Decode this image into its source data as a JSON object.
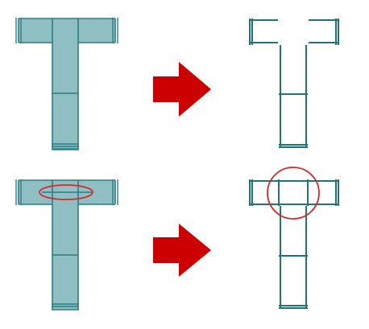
{
  "colors": {
    "background": "#ffffff",
    "pipe_fill": "#8fbfc3",
    "pipe_line": "#2a7f86",
    "outline": "#1f7478",
    "arrow": "#cc0000",
    "highlight": "#d62a2a"
  },
  "rows": [
    {
      "solid_tee": "filled-tee-pipe",
      "arrow": "right-arrow",
      "outline_tee": "tee-outline-open-junction",
      "highlight": false
    },
    {
      "solid_tee": "filled-tee-pipe",
      "arrow": "right-arrow",
      "outline_tee": "tee-outline-closed-junction",
      "highlight": true
    }
  ]
}
